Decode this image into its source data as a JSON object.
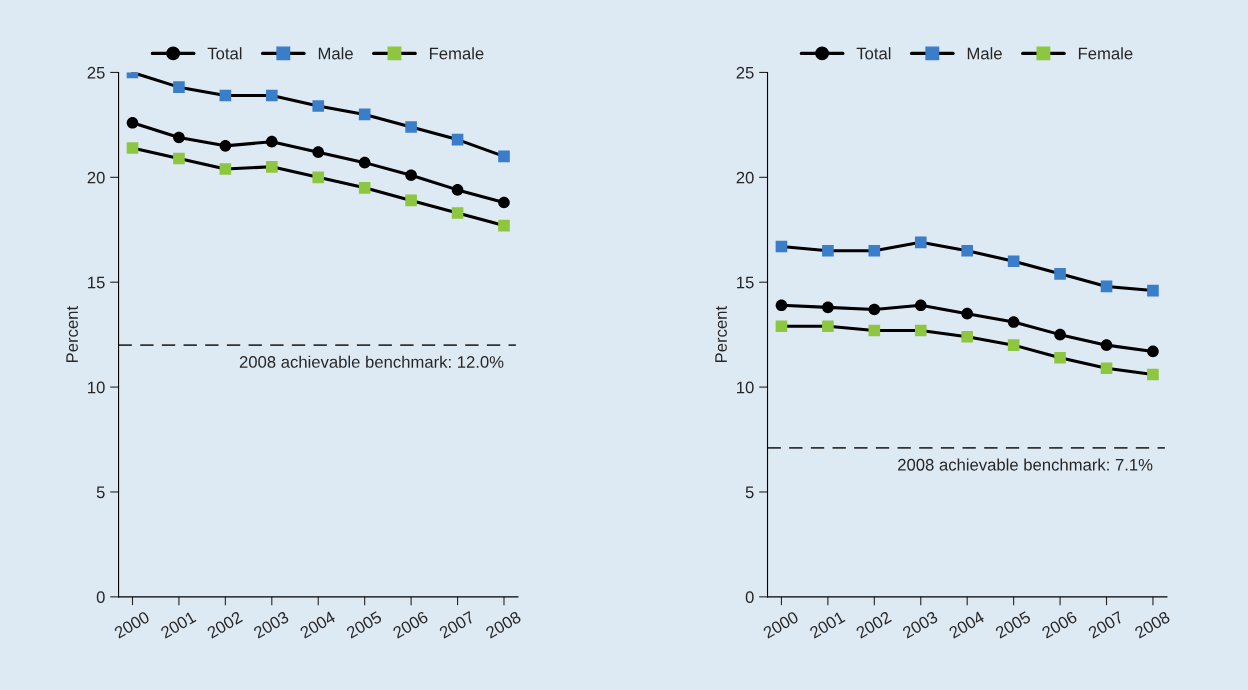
{
  "chart_data": [
    {
      "type": "line",
      "ylabel": "Percent",
      "categories": [
        "2000",
        "2001",
        "2002",
        "2003",
        "2004",
        "2005",
        "2006",
        "2007",
        "2008"
      ],
      "ylim": [
        0,
        25
      ],
      "yticks": [
        0,
        5,
        10,
        15,
        20,
        25
      ],
      "grid": false,
      "legend": "top",
      "line_style": "solid",
      "series": [
        {
          "name": "Total",
          "color": "#000000",
          "marker": "circle",
          "values": [
            22.6,
            21.9,
            21.5,
            21.7,
            21.2,
            20.7,
            20.1,
            19.4,
            18.8
          ]
        },
        {
          "name": "Male",
          "color": "#3a7dc9",
          "marker": "square",
          "values": [
            25.0,
            24.3,
            23.9,
            23.9,
            23.4,
            23.0,
            22.4,
            21.8,
            21.0
          ]
        },
        {
          "name": "Female",
          "color": "#8dc63f",
          "marker": "square",
          "values": [
            21.4,
            20.9,
            20.4,
            20.5,
            20.0,
            19.5,
            18.9,
            18.3,
            17.7
          ]
        }
      ],
      "ref_lines": [
        {
          "axis": "y",
          "value": 12.0,
          "label": "2008 achievable benchmark: 12.0%",
          "line_style": "dashed",
          "color": "#333333"
        }
      ]
    },
    {
      "type": "line",
      "ylabel": "Percent",
      "categories": [
        "2000",
        "2001",
        "2002",
        "2003",
        "2004",
        "2005",
        "2006",
        "2007",
        "2008"
      ],
      "ylim": [
        0,
        25
      ],
      "yticks": [
        0,
        5,
        10,
        15,
        20,
        25
      ],
      "grid": false,
      "legend": "top",
      "line_style": "solid",
      "series": [
        {
          "name": "Total",
          "color": "#000000",
          "marker": "circle",
          "values": [
            13.9,
            13.8,
            13.7,
            13.9,
            13.5,
            13.1,
            12.5,
            12.0,
            11.7
          ]
        },
        {
          "name": "Male",
          "color": "#3a7dc9",
          "marker": "square",
          "values": [
            16.7,
            16.5,
            16.5,
            16.9,
            16.5,
            16.0,
            15.4,
            14.8,
            14.6
          ]
        },
        {
          "name": "Female",
          "color": "#8dc63f",
          "marker": "square",
          "values": [
            12.9,
            12.9,
            12.7,
            12.7,
            12.4,
            12.0,
            11.4,
            10.9,
            10.6
          ]
        }
      ],
      "ref_lines": [
        {
          "axis": "y",
          "value": 7.1,
          "label": "2008 achievable benchmark: 7.1%",
          "line_style": "dashed",
          "color": "#333333"
        }
      ]
    }
  ]
}
